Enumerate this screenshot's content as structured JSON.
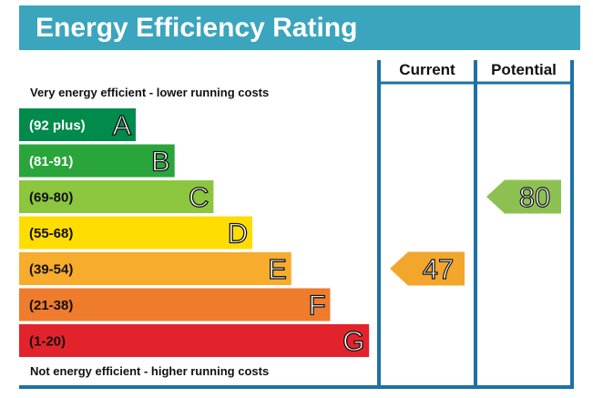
{
  "title": "Energy Efficiency Rating",
  "top_note": "Very energy efficient - lower running costs",
  "bottom_note": "Not energy efficient - higher running costs",
  "columns": {
    "current": "Current",
    "potential": "Potential"
  },
  "colors": {
    "title_bg": "#3aa5bd",
    "frame": "#1d71a5",
    "pointer_current": "#f2a62b",
    "pointer_potential": "#8cc152"
  },
  "chart_data": {
    "type": "bar",
    "bands": [
      {
        "letter": "A",
        "range": "(92 plus)",
        "color": "#008a4b",
        "range_text_color": "#ffffff"
      },
      {
        "letter": "B",
        "range": "(81-91)",
        "color": "#2aa53c",
        "range_text_color": "#ffffff"
      },
      {
        "letter": "C",
        "range": "(69-80)",
        "color": "#8cc63f",
        "range_text_color": "#111111"
      },
      {
        "letter": "D",
        "range": "(55-68)",
        "color": "#ffdd00",
        "range_text_color": "#111111"
      },
      {
        "letter": "E",
        "range": "(39-54)",
        "color": "#f7ac2d",
        "range_text_color": "#111111"
      },
      {
        "letter": "F",
        "range": "(21-38)",
        "color": "#ef7b2d",
        "range_text_color": "#111111"
      },
      {
        "letter": "G",
        "range": "(1-20)",
        "color": "#e3232b",
        "range_text_color": "#111111"
      }
    ],
    "current": {
      "value": 47,
      "band": "E"
    },
    "potential": {
      "value": 80,
      "band": "C"
    }
  }
}
